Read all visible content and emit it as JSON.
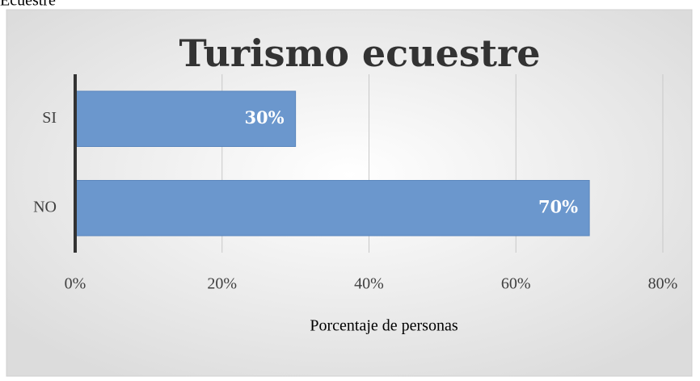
{
  "page_heading": "Ecuestre",
  "chart_data": {
    "type": "hbar",
    "title": "Turismo ecuestre",
    "x_label": "Porcentaje de personas",
    "categories": [
      "SI",
      "NO"
    ],
    "values": [
      30,
      70
    ],
    "value_labels": [
      "30%",
      "70%"
    ],
    "color": "#6b97cd",
    "xlim": [
      0,
      80
    ],
    "xticks": [
      {
        "value": 0,
        "label": "0%"
      },
      {
        "value": 20,
        "label": "20%"
      },
      {
        "value": 40,
        "label": "40%"
      },
      {
        "value": 60,
        "label": "60%"
      },
      {
        "value": 80,
        "label": "80%"
      }
    ],
    "grid": true
  }
}
